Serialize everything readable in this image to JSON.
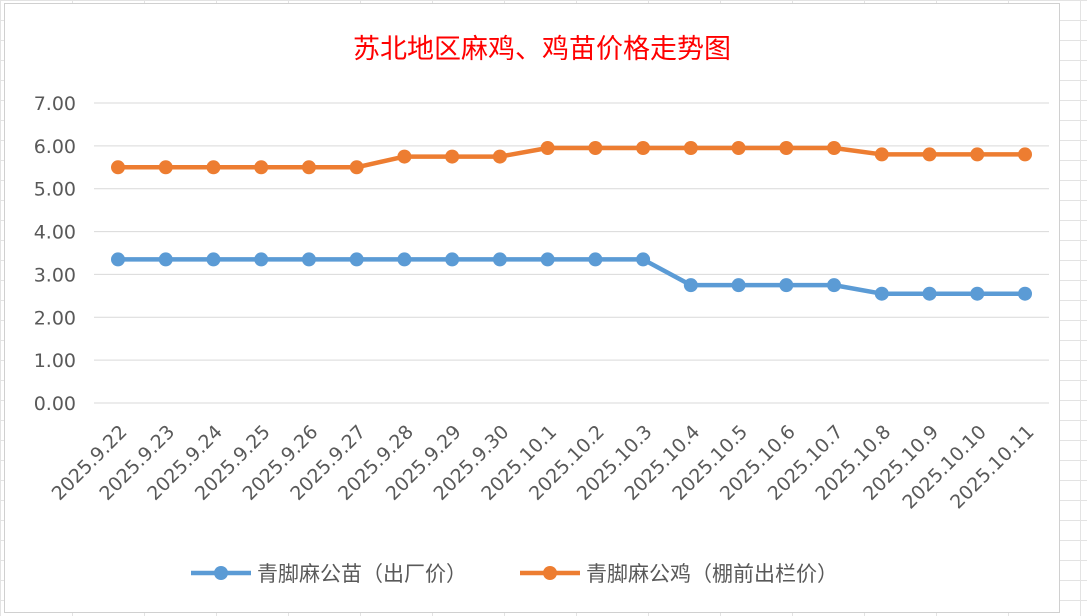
{
  "chart_data": {
    "type": "line",
    "title": "苏北地区麻鸡、鸡苗价格走势图",
    "xlabel": "",
    "ylabel": "",
    "ylim": [
      0,
      7
    ],
    "yticks": [
      "0.00",
      "1.00",
      "2.00",
      "3.00",
      "4.00",
      "5.00",
      "6.00",
      "7.00"
    ],
    "grid": true,
    "legend_position": "bottom",
    "categories": [
      "2025.9.22",
      "2025.9.23",
      "2025.9.24",
      "2025.9.25",
      "2025.9.26",
      "2025.9.27",
      "2025.9.28",
      "2025.9.29",
      "2025.9.30",
      "2025.10.1",
      "2025.10.2",
      "2025.10.3",
      "2025.10.4",
      "2025.10.5",
      "2025.10.6",
      "2025.10.7",
      "2025.10.8",
      "2025.10.9",
      "2025.10.10",
      "2025.10.11"
    ],
    "series": [
      {
        "name": "青脚麻公苗（出厂价）",
        "color": "#5b9bd5",
        "values": [
          3.35,
          3.35,
          3.35,
          3.35,
          3.35,
          3.35,
          3.35,
          3.35,
          3.35,
          3.35,
          3.35,
          3.35,
          2.75,
          2.75,
          2.75,
          2.75,
          2.55,
          2.55,
          2.55,
          2.55
        ]
      },
      {
        "name": "青脚麻公鸡（棚前出栏价）",
        "color": "#ed7d31",
        "values": [
          5.5,
          5.5,
          5.5,
          5.5,
          5.5,
          5.5,
          5.75,
          5.75,
          5.75,
          5.95,
          5.95,
          5.95,
          5.95,
          5.95,
          5.95,
          5.95,
          5.8,
          5.8,
          5.8,
          5.8
        ]
      }
    ],
    "title_color": "#ff0000"
  }
}
